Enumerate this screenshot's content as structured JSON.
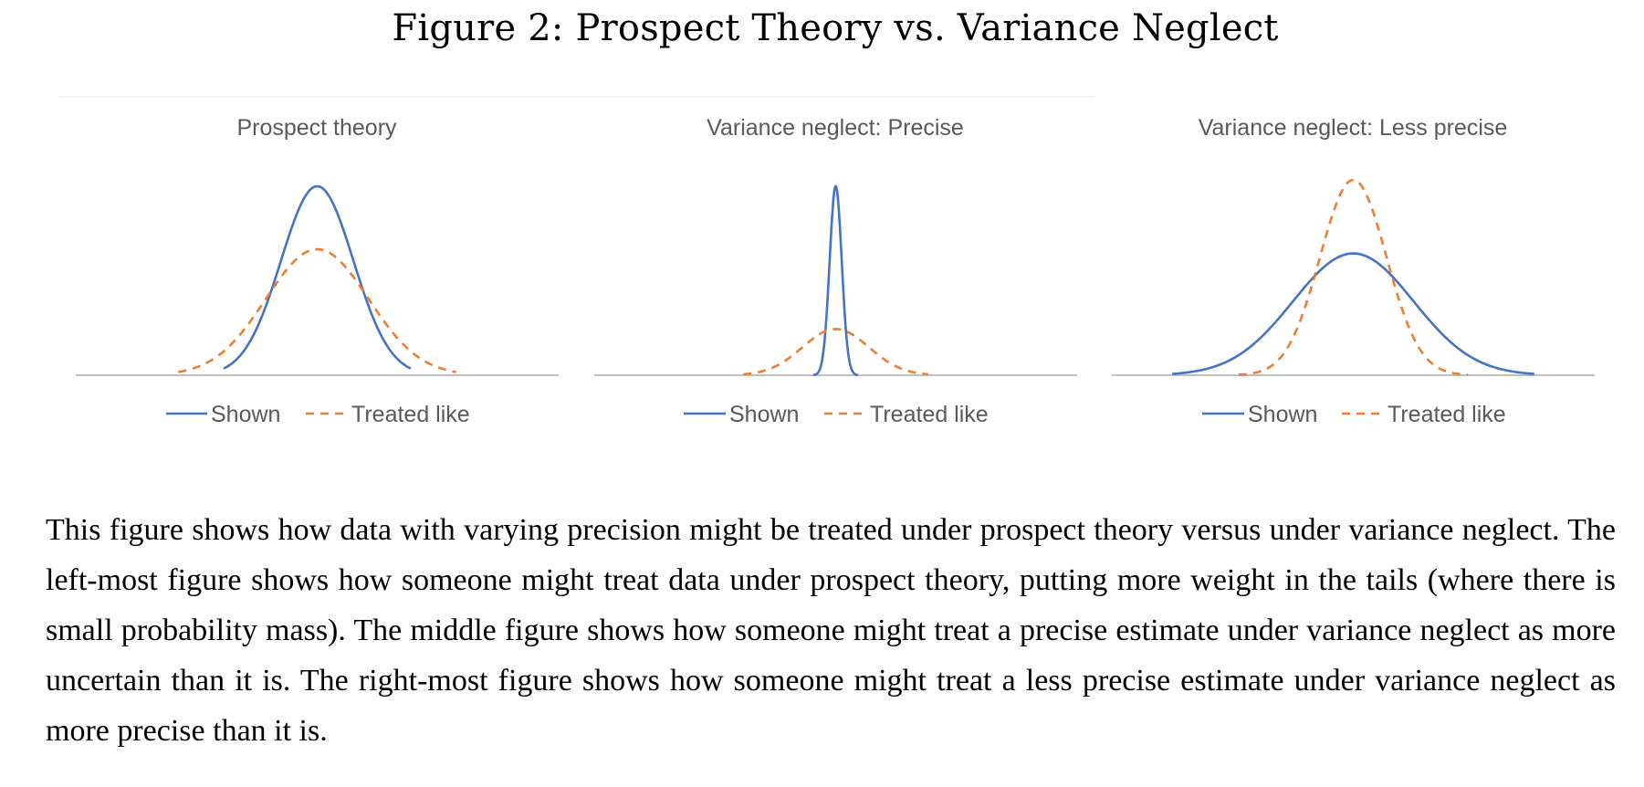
{
  "figure": {
    "title": "Figure 2: Prospect Theory vs. Variance Neglect",
    "caption": "This figure shows how data with varying precision might be treated under prospect theory versus under variance neglect. The left-most figure shows how someone might treat data under prospect theory, putting more weight in the tails (where there is small probability mass). The middle figure shows how someone might treat a precise estimate under variance neglect as more uncertain than it is. The right-most figure shows how someone might treat a less precise estimate under variance neglect as more precise than it is."
  },
  "colors": {
    "shown": "#4472C4",
    "treated_like": "#ED7D31",
    "axis": "#BFBFBF",
    "title_text": "#595959"
  },
  "chart_data": [
    {
      "type": "line",
      "title": "Prospect theory",
      "xlabel": "",
      "ylabel": "",
      "grid": false,
      "legend": "bottom",
      "xlim": [
        -4,
        4
      ],
      "ylim": [
        0,
        1
      ],
      "series": [
        {
          "name": "Shown",
          "style": "solid",
          "peak": 0.9,
          "sd": 0.6,
          "domain": [
            -1.55,
            1.55
          ]
        },
        {
          "name": "Treated like",
          "style": "dashed",
          "peak": 0.6,
          "sd": 0.85,
          "domain": [
            -2.3,
            2.3
          ]
        }
      ]
    },
    {
      "type": "line",
      "title": "Variance neglect: Precise",
      "xlabel": "",
      "ylabel": "",
      "grid": false,
      "legend": "bottom",
      "xlim": [
        -4,
        4
      ],
      "ylim": [
        0,
        1
      ],
      "series": [
        {
          "name": "Shown",
          "style": "solid",
          "peak": 0.9,
          "sd": 0.1,
          "domain": [
            -0.37,
            0.37
          ]
        },
        {
          "name": "Treated like",
          "style": "dashed",
          "peak": 0.22,
          "sd": 0.55,
          "domain": [
            -1.53,
            1.53
          ]
        }
      ]
    },
    {
      "type": "line",
      "title": "Variance neglect: Less precise",
      "xlabel": "",
      "ylabel": "",
      "grid": false,
      "legend": "bottom",
      "xlim": [
        -4,
        4
      ],
      "ylim": [
        0,
        1
      ],
      "series": [
        {
          "name": "Shown",
          "style": "solid",
          "peak": 0.58,
          "sd": 1.0,
          "domain": [
            -3.0,
            3.0
          ]
        },
        {
          "name": "Treated like",
          "style": "dashed",
          "peak": 0.93,
          "sd": 0.55,
          "domain": [
            -1.9,
            1.9
          ]
        }
      ]
    }
  ]
}
